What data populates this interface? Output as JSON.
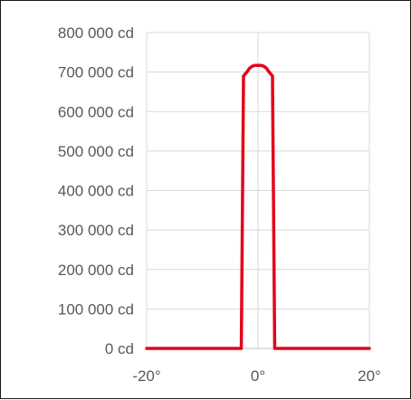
{
  "chart_data": {
    "type": "line",
    "title": "",
    "xlabel": "",
    "ylabel": "",
    "xlim": [
      -20,
      20
    ],
    "ylim": [
      0,
      800000
    ],
    "grid": true,
    "y_ticks": [
      0,
      100000,
      200000,
      300000,
      400000,
      500000,
      600000,
      700000,
      800000
    ],
    "y_tick_labels": [
      "0 cd",
      "100 000 cd",
      "200 000 cd",
      "300 000 cd",
      "400 000 cd",
      "500 000 cd",
      "600 000 cd",
      "700 000 cd",
      "800 000 cd"
    ],
    "x_ticks": [
      -20,
      0,
      20
    ],
    "x_tick_labels": [
      "-20°",
      "0°",
      "20°"
    ],
    "series": [
      {
        "color": "#e3051b",
        "x": [
          -20,
          -3,
          -2.6,
          -2,
          -1.5,
          -1,
          -0.5,
          0,
          0.5,
          1,
          1.5,
          2,
          2.6,
          3,
          20
        ],
        "y": [
          0,
          0,
          690000,
          700000,
          710000,
          715000,
          717000,
          717000,
          717000,
          715000,
          710000,
          700000,
          690000,
          0,
          0
        ]
      }
    ]
  }
}
